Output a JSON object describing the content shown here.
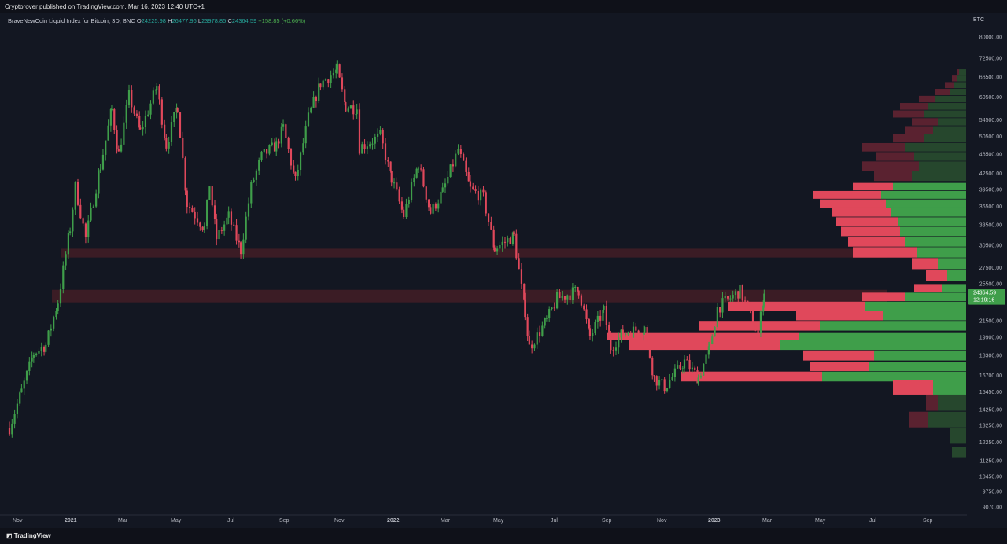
{
  "header": {
    "published": "Cryptorover published on TradingView.com, Mar 16, 2023 12:40 UTC+1"
  },
  "legend": {
    "symbol": "BraveNewCoin Liquid Index for Bitcoin, 3D, BNC",
    "o_label": "O",
    "o": "24225.98",
    "h_label": "H",
    "h": "26477.96",
    "l_label": "L",
    "l": "23978.85",
    "c_label": "C",
    "c": "24364.59",
    "change": "+158.85 (+0.66%)"
  },
  "footer": {
    "brand": "TradingView"
  },
  "colors": {
    "up": "#3f9e4a",
    "down": "#e0485b",
    "background": "#131722",
    "zone": "#4a1f27"
  },
  "chart_data": {
    "type": "candlestick",
    "currency_label": "BTC",
    "y_ticks": [
      "80000.00",
      "72500.00",
      "66500.00",
      "60500.00",
      "54500.00",
      "50500.00",
      "46500.00",
      "42500.00",
      "39500.00",
      "36500.00",
      "33500.00",
      "30500.00",
      "27500.00",
      "25500.00",
      "21500.00",
      "19900.00",
      "18300.00",
      "16700.00",
      "15450.00",
      "14250.00",
      "13250.00",
      "12250.00",
      "11250.00",
      "10450.00",
      "9750.00",
      "9070.00"
    ],
    "x_ticks": [
      "Nov",
      "2021",
      "Mar",
      "May",
      "Jul",
      "Sep",
      "Nov",
      "2022",
      "Mar",
      "May",
      "Jul",
      "Sep",
      "Nov",
      "2023",
      "Mar",
      "May",
      "Jul",
      "Sep"
    ],
    "last_price": "24364.59",
    "countdown": "12:19:16",
    "zones": [
      {
        "from": 28800,
        "to": 30000
      },
      {
        "from": 23400,
        "to": 24800
      }
    ],
    "price_path": [
      [
        "2020-10-26",
        13100
      ],
      [
        "2020-11-09",
        15500
      ],
      [
        "2020-11-23",
        18500
      ],
      [
        "2020-12-07",
        19200
      ],
      [
        "2020-12-21",
        23500
      ],
      [
        "2021-01-04",
        33000
      ],
      [
        "2021-01-10",
        40000
      ],
      [
        "2021-01-22",
        31500
      ],
      [
        "2021-02-08",
        44000
      ],
      [
        "2021-02-21",
        57000
      ],
      [
        "2021-03-01",
        46500
      ],
      [
        "2021-03-13",
        61000
      ],
      [
        "2021-03-26",
        51500
      ],
      [
        "2021-04-14",
        63500
      ],
      [
        "2021-04-25",
        48500
      ],
      [
        "2021-05-08",
        58000
      ],
      [
        "2021-05-19",
        37000
      ],
      [
        "2021-06-08",
        33000
      ],
      [
        "2021-06-14",
        40500
      ],
      [
        "2021-06-22",
        31500
      ],
      [
        "2021-07-06",
        34800
      ],
      [
        "2021-07-20",
        29800
      ],
      [
        "2021-08-01",
        40000
      ],
      [
        "2021-08-13",
        46000
      ],
      [
        "2021-08-30",
        48500
      ],
      [
        "2021-09-07",
        52500
      ],
      [
        "2021-09-21",
        41000
      ],
      [
        "2021-10-06",
        55000
      ],
      [
        "2021-10-20",
        64500
      ],
      [
        "2021-11-08",
        68500
      ],
      [
        "2021-11-18",
        58000
      ],
      [
        "2021-12-01",
        57500
      ],
      [
        "2021-12-04",
        48000
      ],
      [
        "2021-12-28",
        50500
      ],
      [
        "2022-01-10",
        41500
      ],
      [
        "2022-01-24",
        35000
      ],
      [
        "2022-02-10",
        44500
      ],
      [
        "2022-02-24",
        35500
      ],
      [
        "2022-03-10",
        39000
      ],
      [
        "2022-03-28",
        47500
      ],
      [
        "2022-04-11",
        39500
      ],
      [
        "2022-04-26",
        38000
      ],
      [
        "2022-05-09",
        30000
      ],
      [
        "2022-05-31",
        31800
      ],
      [
        "2022-06-13",
        22500
      ],
      [
        "2022-06-18",
        19000
      ],
      [
        "2022-07-08",
        21500
      ],
      [
        "2022-07-20",
        23800
      ],
      [
        "2022-08-14",
        24800
      ],
      [
        "2022-08-27",
        20000
      ],
      [
        "2022-09-12",
        22500
      ],
      [
        "2022-09-20",
        19000
      ],
      [
        "2022-10-04",
        20300
      ],
      [
        "2022-10-29",
        20800
      ],
      [
        "2022-11-09",
        16500
      ],
      [
        "2022-11-21",
        15800
      ],
      [
        "2022-12-14",
        17800
      ],
      [
        "2022-12-30",
        16500
      ],
      [
        "2023-01-12",
        18900
      ],
      [
        "2023-01-21",
        22800
      ],
      [
        "2023-02-16",
        24700
      ],
      [
        "2023-03-09",
        20200
      ],
      [
        "2023-03-16",
        24364.59
      ]
    ],
    "volume_profile": [
      {
        "price": 68000,
        "up": 0.03,
        "down": 0.01
      },
      {
        "price": 66000,
        "up": 0.04,
        "down": 0.02
      },
      {
        "price": 64000,
        "up": 0.05,
        "down": 0.04
      },
      {
        "price": 62000,
        "up": 0.07,
        "down": 0.06
      },
      {
        "price": 60000,
        "up": 0.13,
        "down": 0.07
      },
      {
        "price": 58000,
        "up": 0.16,
        "down": 0.12
      },
      {
        "price": 56000,
        "up": 0.18,
        "down": 0.13
      },
      {
        "price": 54000,
        "up": 0.12,
        "down": 0.11
      },
      {
        "price": 52000,
        "up": 0.14,
        "down": 0.12
      },
      {
        "price": 50000,
        "up": 0.18,
        "down": 0.13
      },
      {
        "price": 48000,
        "up": 0.26,
        "down": 0.18
      },
      {
        "price": 46000,
        "up": 0.22,
        "down": 0.16
      },
      {
        "price": 44000,
        "up": 0.2,
        "down": 0.24
      },
      {
        "price": 42000,
        "up": 0.23,
        "down": 0.16
      },
      {
        "price": 40000,
        "up": 0.31,
        "down": 0.17
      },
      {
        "price": 38500,
        "up": 0.36,
        "down": 0.29
      },
      {
        "price": 37000,
        "up": 0.34,
        "down": 0.28
      },
      {
        "price": 35500,
        "up": 0.32,
        "down": 0.25
      },
      {
        "price": 34000,
        "up": 0.29,
        "down": 0.26
      },
      {
        "price": 32500,
        "up": 0.28,
        "down": 0.25
      },
      {
        "price": 31000,
        "up": 0.26,
        "down": 0.24
      },
      {
        "price": 29500,
        "up": 0.21,
        "down": 0.27
      },
      {
        "price": 28000,
        "up": 0.12,
        "down": 0.11
      },
      {
        "price": 26500,
        "up": 0.08,
        "down": 0.09
      },
      {
        "price": 25000,
        "up": 0.1,
        "down": 0.12
      },
      {
        "price": 24000,
        "up": 0.26,
        "down": 0.18
      },
      {
        "price": 23000,
        "up": 0.43,
        "down": 0.58
      },
      {
        "price": 22000,
        "up": 0.35,
        "down": 0.37
      },
      {
        "price": 21000,
        "up": 0.62,
        "down": 0.51
      },
      {
        "price": 20000,
        "up": 0.71,
        "down": 0.81
      },
      {
        "price": 19200,
        "up": 0.79,
        "down": 0.64
      },
      {
        "price": 18300,
        "up": 0.39,
        "down": 0.3
      },
      {
        "price": 17400,
        "up": 0.41,
        "down": 0.25
      },
      {
        "price": 16600,
        "up": 0.61,
        "down": 0.6
      },
      {
        "price": 15800,
        "up": 0.14,
        "down": 0.17
      },
      {
        "price": 14700,
        "up": 0.12,
        "down": 0.05
      },
      {
        "price": 13600,
        "up": 0.16,
        "down": 0.08
      },
      {
        "price": 12600,
        "up": 0.07,
        "down": 0
      },
      {
        "price": 11700,
        "up": 0.06,
        "down": 0
      }
    ]
  }
}
